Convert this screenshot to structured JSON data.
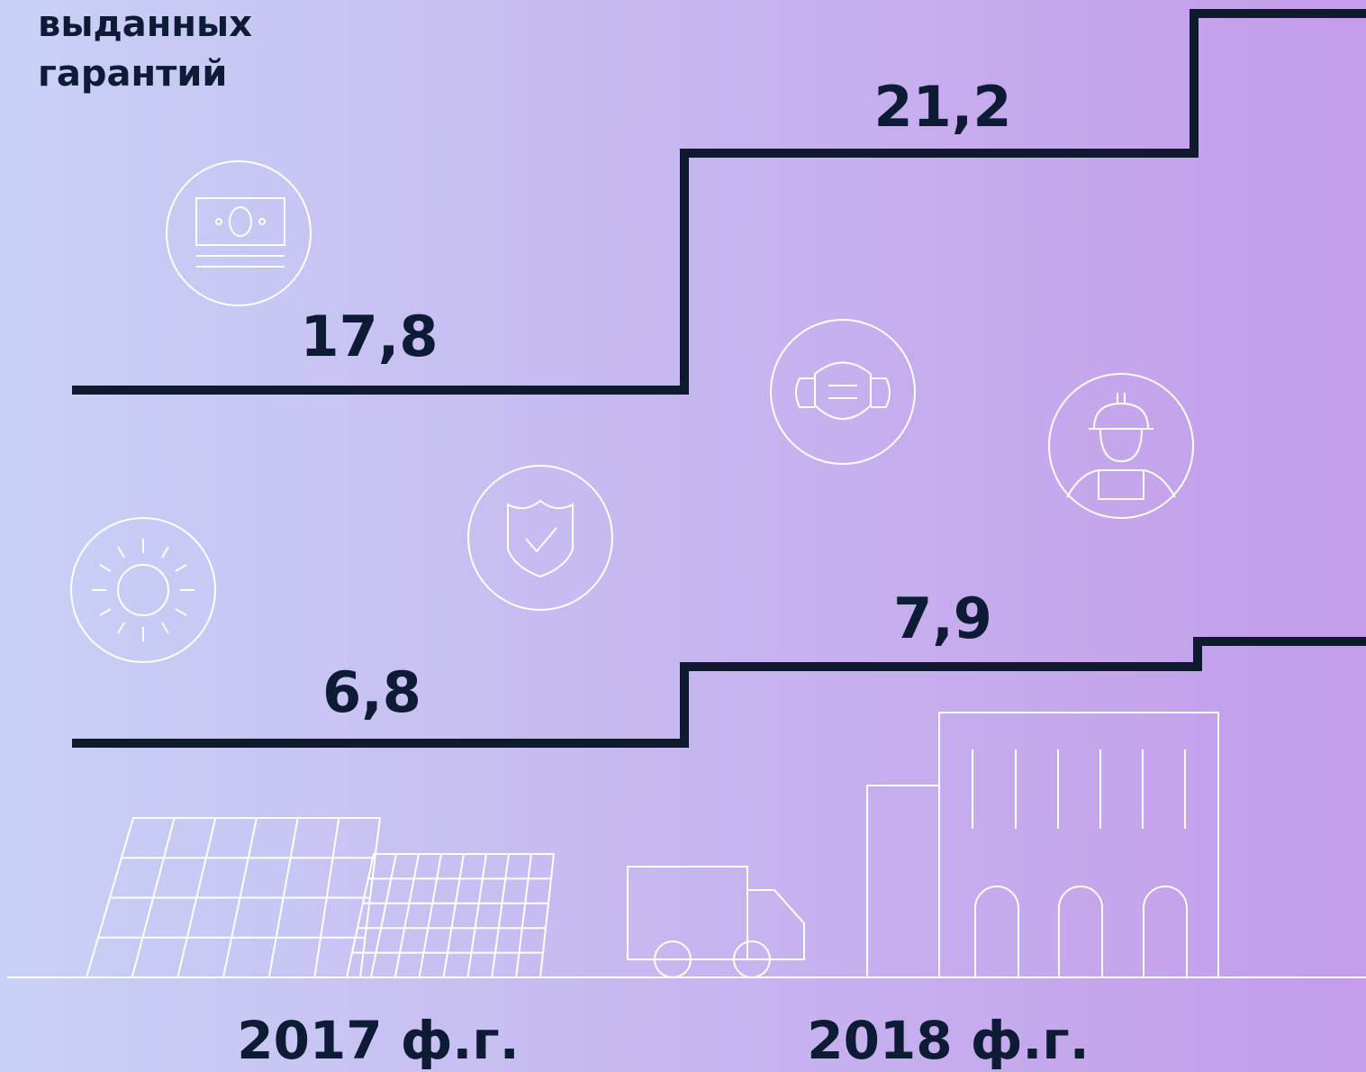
{
  "title_lines": [
    "выданных",
    "гарантий"
  ],
  "upper_step": {
    "labels": [
      "17,8",
      "21,2"
    ]
  },
  "lower_step": {
    "labels": [
      "6,8",
      "7,9"
    ]
  },
  "years": [
    "2017 ф.г.",
    "2018 ф.г."
  ]
}
